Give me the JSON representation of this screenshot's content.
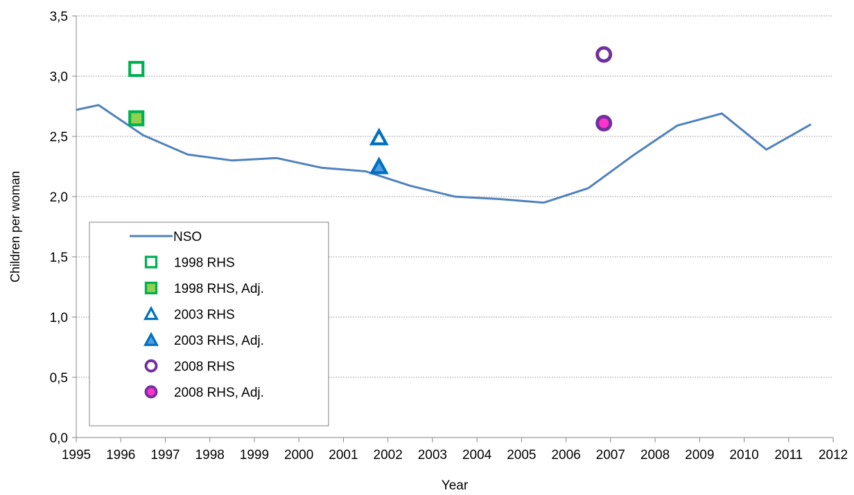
{
  "chart_data": {
    "type": "line",
    "title": "",
    "xlabel": "Year",
    "ylabel": "Children per woman",
    "xlim": [
      1995,
      2012
    ],
    "ylim": [
      0,
      3.5
    ],
    "x_ticks": [
      "1995",
      "1996",
      "1997",
      "1998",
      "1999",
      "2000",
      "2001",
      "2002",
      "2003",
      "2004",
      "2005",
      "2006",
      "2007",
      "2008",
      "2009",
      "2010",
      "2011",
      "2012"
    ],
    "y_ticks": [
      "0,0",
      "0,5",
      "1,0",
      "1,5",
      "2,0",
      "2,5",
      "3,0",
      "3,5"
    ],
    "grid": "horizontal-dotted",
    "legend_position": "bottom-left",
    "series": [
      {
        "name": "NSO",
        "kind": "line",
        "color": "#4f81bd",
        "x": [
          1995,
          1995.5,
          1996.5,
          1997.5,
          1998.5,
          1999.5,
          2000.5,
          2001.5,
          2002.5,
          2003.5,
          2004.5,
          2005.5,
          2006.5,
          2007.5,
          2008.5,
          2009.5,
          2010.5,
          2011.5
        ],
        "y": [
          2.72,
          2.76,
          2.51,
          2.35,
          2.3,
          2.32,
          2.24,
          2.21,
          2.09,
          2.0,
          1.98,
          1.95,
          2.07,
          2.34,
          2.59,
          2.69,
          2.39,
          2.6
        ]
      },
      {
        "name": "1998 RHS",
        "kind": "marker",
        "marker": "square-hollow",
        "color": "#00b050",
        "x": [
          1996.35
        ],
        "y": [
          3.06
        ]
      },
      {
        "name": "1998 RHS, Adj.",
        "kind": "marker",
        "marker": "square-filled",
        "color": "#00b050",
        "fill": "#92d050",
        "x": [
          1996.35
        ],
        "y": [
          2.65
        ]
      },
      {
        "name": "2003 RHS",
        "kind": "marker",
        "marker": "triangle-hollow",
        "color": "#0070c0",
        "x": [
          2001.8
        ],
        "y": [
          2.49
        ]
      },
      {
        "name": "2003 RHS, Adj.",
        "kind": "marker",
        "marker": "triangle-filled",
        "color": "#0070c0",
        "fill": "#4f9fe0",
        "x": [
          2001.8
        ],
        "y": [
          2.25
        ]
      },
      {
        "name": "2008 RHS",
        "kind": "marker",
        "marker": "circle-hollow",
        "color": "#7030a0",
        "x": [
          2006.85
        ],
        "y": [
          3.18
        ]
      },
      {
        "name": "2008 RHS, Adj.",
        "kind": "marker",
        "marker": "circle-filled",
        "color": "#7030a0",
        "fill": "#ff33cc",
        "x": [
          2006.85
        ],
        "y": [
          2.61
        ]
      }
    ]
  }
}
